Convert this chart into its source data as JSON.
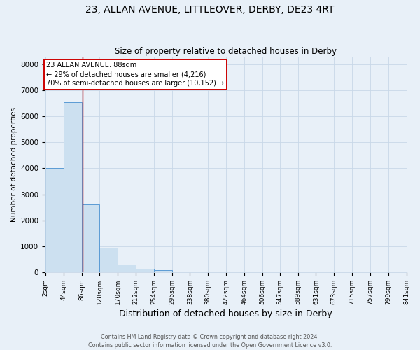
{
  "title": "23, ALLAN AVENUE, LITTLEOVER, DERBY, DE23 4RT",
  "subtitle": "Size of property relative to detached houses in Derby",
  "xlabel": "Distribution of detached houses by size in Derby",
  "ylabel": "Number of detached properties",
  "footer_line1": "Contains HM Land Registry data © Crown copyright and database right 2024.",
  "footer_line2": "Contains public sector information licensed under the Open Government Licence v3.0.",
  "bins": [
    2,
    44,
    86,
    128,
    170,
    212,
    254,
    296,
    338,
    380,
    422,
    464,
    506,
    547,
    589,
    631,
    673,
    715,
    757,
    799,
    841
  ],
  "bin_labels": [
    "2sqm",
    "44sqm",
    "86sqm",
    "128sqm",
    "170sqm",
    "212sqm",
    "254sqm",
    "296sqm",
    "338sqm",
    "380sqm",
    "422sqm",
    "464sqm",
    "506sqm",
    "547sqm",
    "589sqm",
    "631sqm",
    "673sqm",
    "715sqm",
    "757sqm",
    "799sqm",
    "841sqm"
  ],
  "values": [
    4000,
    6550,
    2600,
    950,
    300,
    130,
    70,
    30,
    10,
    5,
    2,
    1,
    1,
    0,
    0,
    0,
    0,
    0,
    0,
    0
  ],
  "bar_color": "#cce0f0",
  "bar_edge_color": "#5b9bd5",
  "property_line_x": 88,
  "annotation_title": "23 ALLAN AVENUE: 88sqm",
  "annotation_line2": "← 29% of detached houses are smaller (4,216)",
  "annotation_line3": "70% of semi-detached houses are larger (10,152) →",
  "annotation_box_color": "#ffffff",
  "annotation_box_edge": "#cc0000",
  "property_line_color": "#cc0000",
  "ylim": [
    0,
    8300
  ],
  "yticks": [
    0,
    1000,
    2000,
    3000,
    4000,
    5000,
    6000,
    7000,
    8000
  ],
  "grid_color": "#c8d8e8",
  "background_color": "#e8f0f8",
  "title_fontsize": 10,
  "subtitle_fontsize": 8.5,
  "ylabel_fontsize": 7.5,
  "xlabel_fontsize": 9,
  "tick_fontsize": 6.5,
  "ytick_fontsize": 7.5,
  "footer_fontsize": 5.8,
  "ann_fontsize": 7.0
}
